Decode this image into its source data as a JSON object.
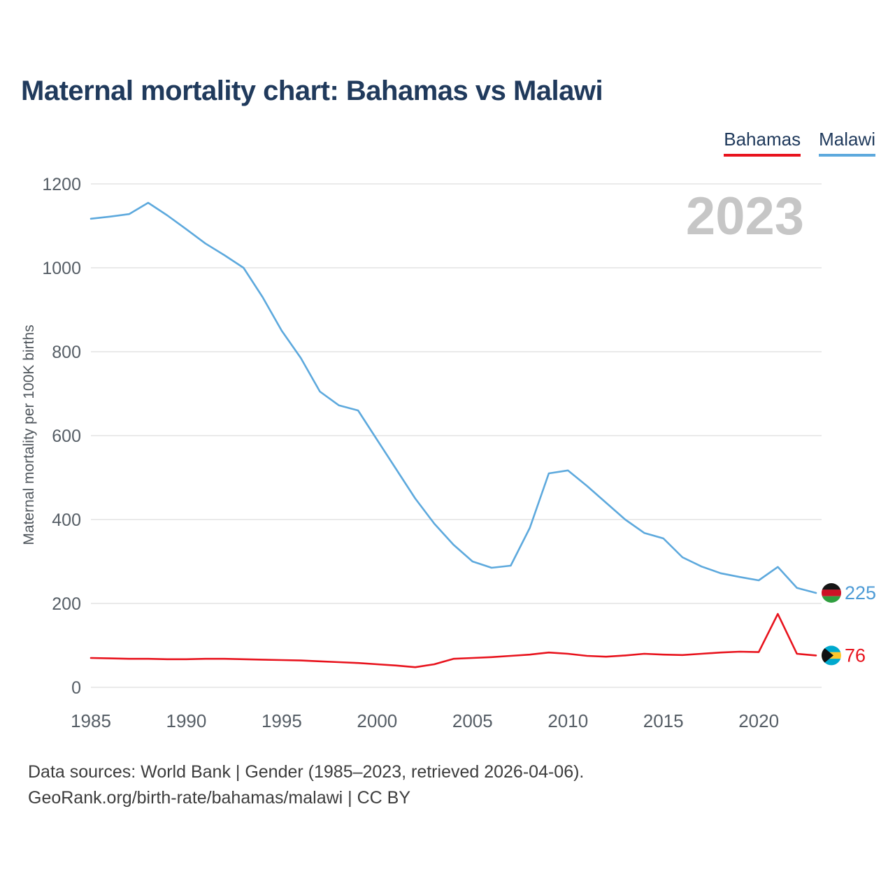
{
  "title": "Maternal mortality chart: Bahamas vs Malawi",
  "watermark": "2023",
  "legend": {
    "items": [
      {
        "label": "Bahamas",
        "color": "#e8131d"
      },
      {
        "label": "Malawi",
        "color": "#5da9dd"
      }
    ]
  },
  "ylabel": "Maternal mortality per 100K births",
  "footer": {
    "line1": "Data sources: World Bank | Gender (1985–2023, retrieved 2026-04-06).",
    "line2": "GeoRank.org/birth-rate/bahamas/malawi | CC BY"
  },
  "end_labels": [
    {
      "series": "Malawi",
      "value": "225",
      "color": "#4d9bd6",
      "flag": "malawi-flag-icon"
    },
    {
      "series": "Bahamas",
      "value": "76",
      "color": "#e8131d",
      "flag": "bahamas-flag-icon"
    }
  ],
  "chart_data": {
    "type": "line",
    "title": "Maternal mortality chart: Bahamas vs Malawi",
    "xlabel": "",
    "ylabel": "Maternal mortality per 100K births",
    "x": [
      1985,
      1986,
      1987,
      1988,
      1989,
      1990,
      1991,
      1992,
      1993,
      1994,
      1995,
      1996,
      1997,
      1998,
      1999,
      2000,
      2001,
      2002,
      2003,
      2004,
      2005,
      2006,
      2007,
      2008,
      2009,
      2010,
      2011,
      2012,
      2013,
      2014,
      2015,
      2016,
      2017,
      2018,
      2019,
      2020,
      2021,
      2022,
      2023
    ],
    "series": [
      {
        "name": "Bahamas",
        "color": "#e8131d",
        "values": [
          70,
          69,
          68,
          68,
          67,
          67,
          68,
          68,
          67,
          66,
          65,
          64,
          62,
          60,
          58,
          55,
          52,
          48,
          55,
          68,
          70,
          72,
          75,
          78,
          83,
          80,
          75,
          73,
          76,
          80,
          78,
          77,
          80,
          83,
          85,
          84,
          175,
          80,
          76
        ]
      },
      {
        "name": "Malawi",
        "color": "#5da9dd",
        "values": [
          1117,
          1122,
          1128,
          1155,
          1125,
          1092,
          1058,
          1030,
          1000,
          930,
          850,
          785,
          705,
          672,
          660,
          590,
          520,
          450,
          390,
          340,
          300,
          285,
          290,
          380,
          510,
          517,
          480,
          440,
          400,
          368,
          355,
          310,
          288,
          272,
          263,
          255,
          287,
          237,
          225
        ]
      }
    ],
    "ylim": [
      0,
      1200
    ],
    "yticks": [
      0,
      200,
      400,
      600,
      800,
      1000,
      1200
    ],
    "xticks": [
      1985,
      1990,
      1995,
      2000,
      2005,
      2010,
      2015,
      2020
    ],
    "grid": true,
    "legend_position": "top-right"
  }
}
